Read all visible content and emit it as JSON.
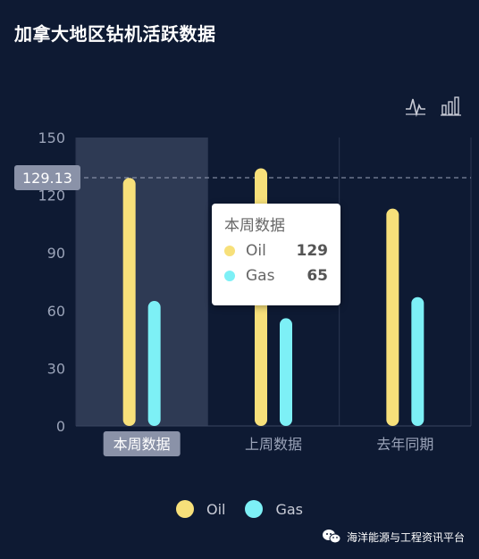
{
  "title": "加拿大地区钻机活跃数据",
  "toolbox": {
    "line_icon": "line-chart-icon",
    "bar_icon": "bar-chart-icon"
  },
  "colors": {
    "oil": "#f7e07a",
    "gas": "#7df0f6",
    "background": "#0e1a33",
    "axis_text": "#9aa3b8"
  },
  "tooltip": {
    "title": "本周数据",
    "rows": [
      {
        "name": "Oil",
        "value": "129"
      },
      {
        "name": "Gas",
        "value": "65"
      }
    ]
  },
  "legend": [
    {
      "name": "Oil"
    },
    {
      "name": "Gas"
    }
  ],
  "watermark": "海洋能源与工程资讯平台",
  "chart_data": {
    "type": "bar",
    "categories": [
      "本周数据",
      "上周数据",
      "去年同期"
    ],
    "series": [
      {
        "name": "Oil",
        "values": [
          129,
          134,
          113
        ]
      },
      {
        "name": "Gas",
        "values": [
          65,
          56,
          67
        ]
      }
    ],
    "ylim": [
      0,
      150
    ],
    "yticks": [
      0,
      30,
      60,
      90,
      120,
      150
    ],
    "crosshair_value": "129.13",
    "highlighted_category": "本周数据",
    "grid": "vertical",
    "legend_position": "bottom"
  }
}
